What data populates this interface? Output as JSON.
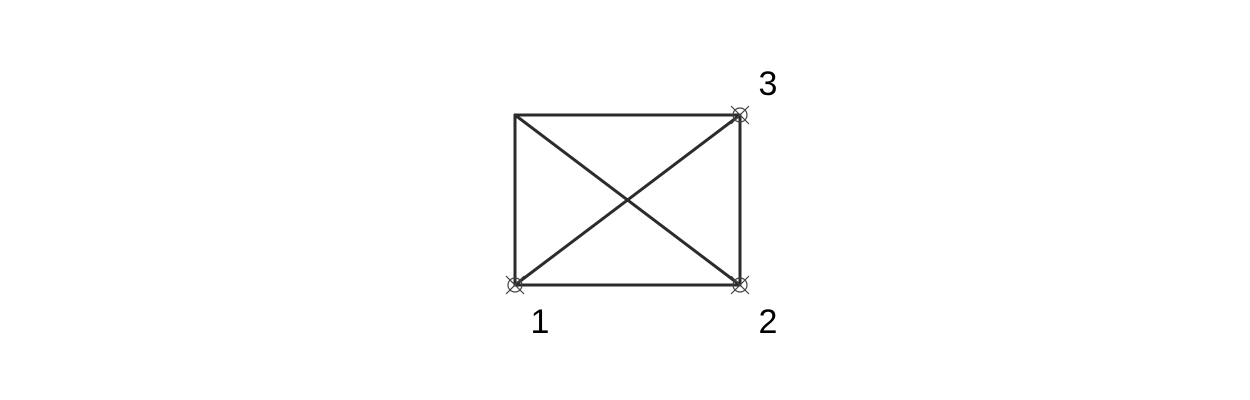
{
  "diagram": {
    "points": [
      {
        "label": "1"
      },
      {
        "label": "2"
      },
      {
        "label": "3"
      }
    ],
    "colors": {
      "line": "#2b2b2b",
      "marker": "#444444",
      "text": "#000000",
      "background": "#ffffff"
    }
  }
}
